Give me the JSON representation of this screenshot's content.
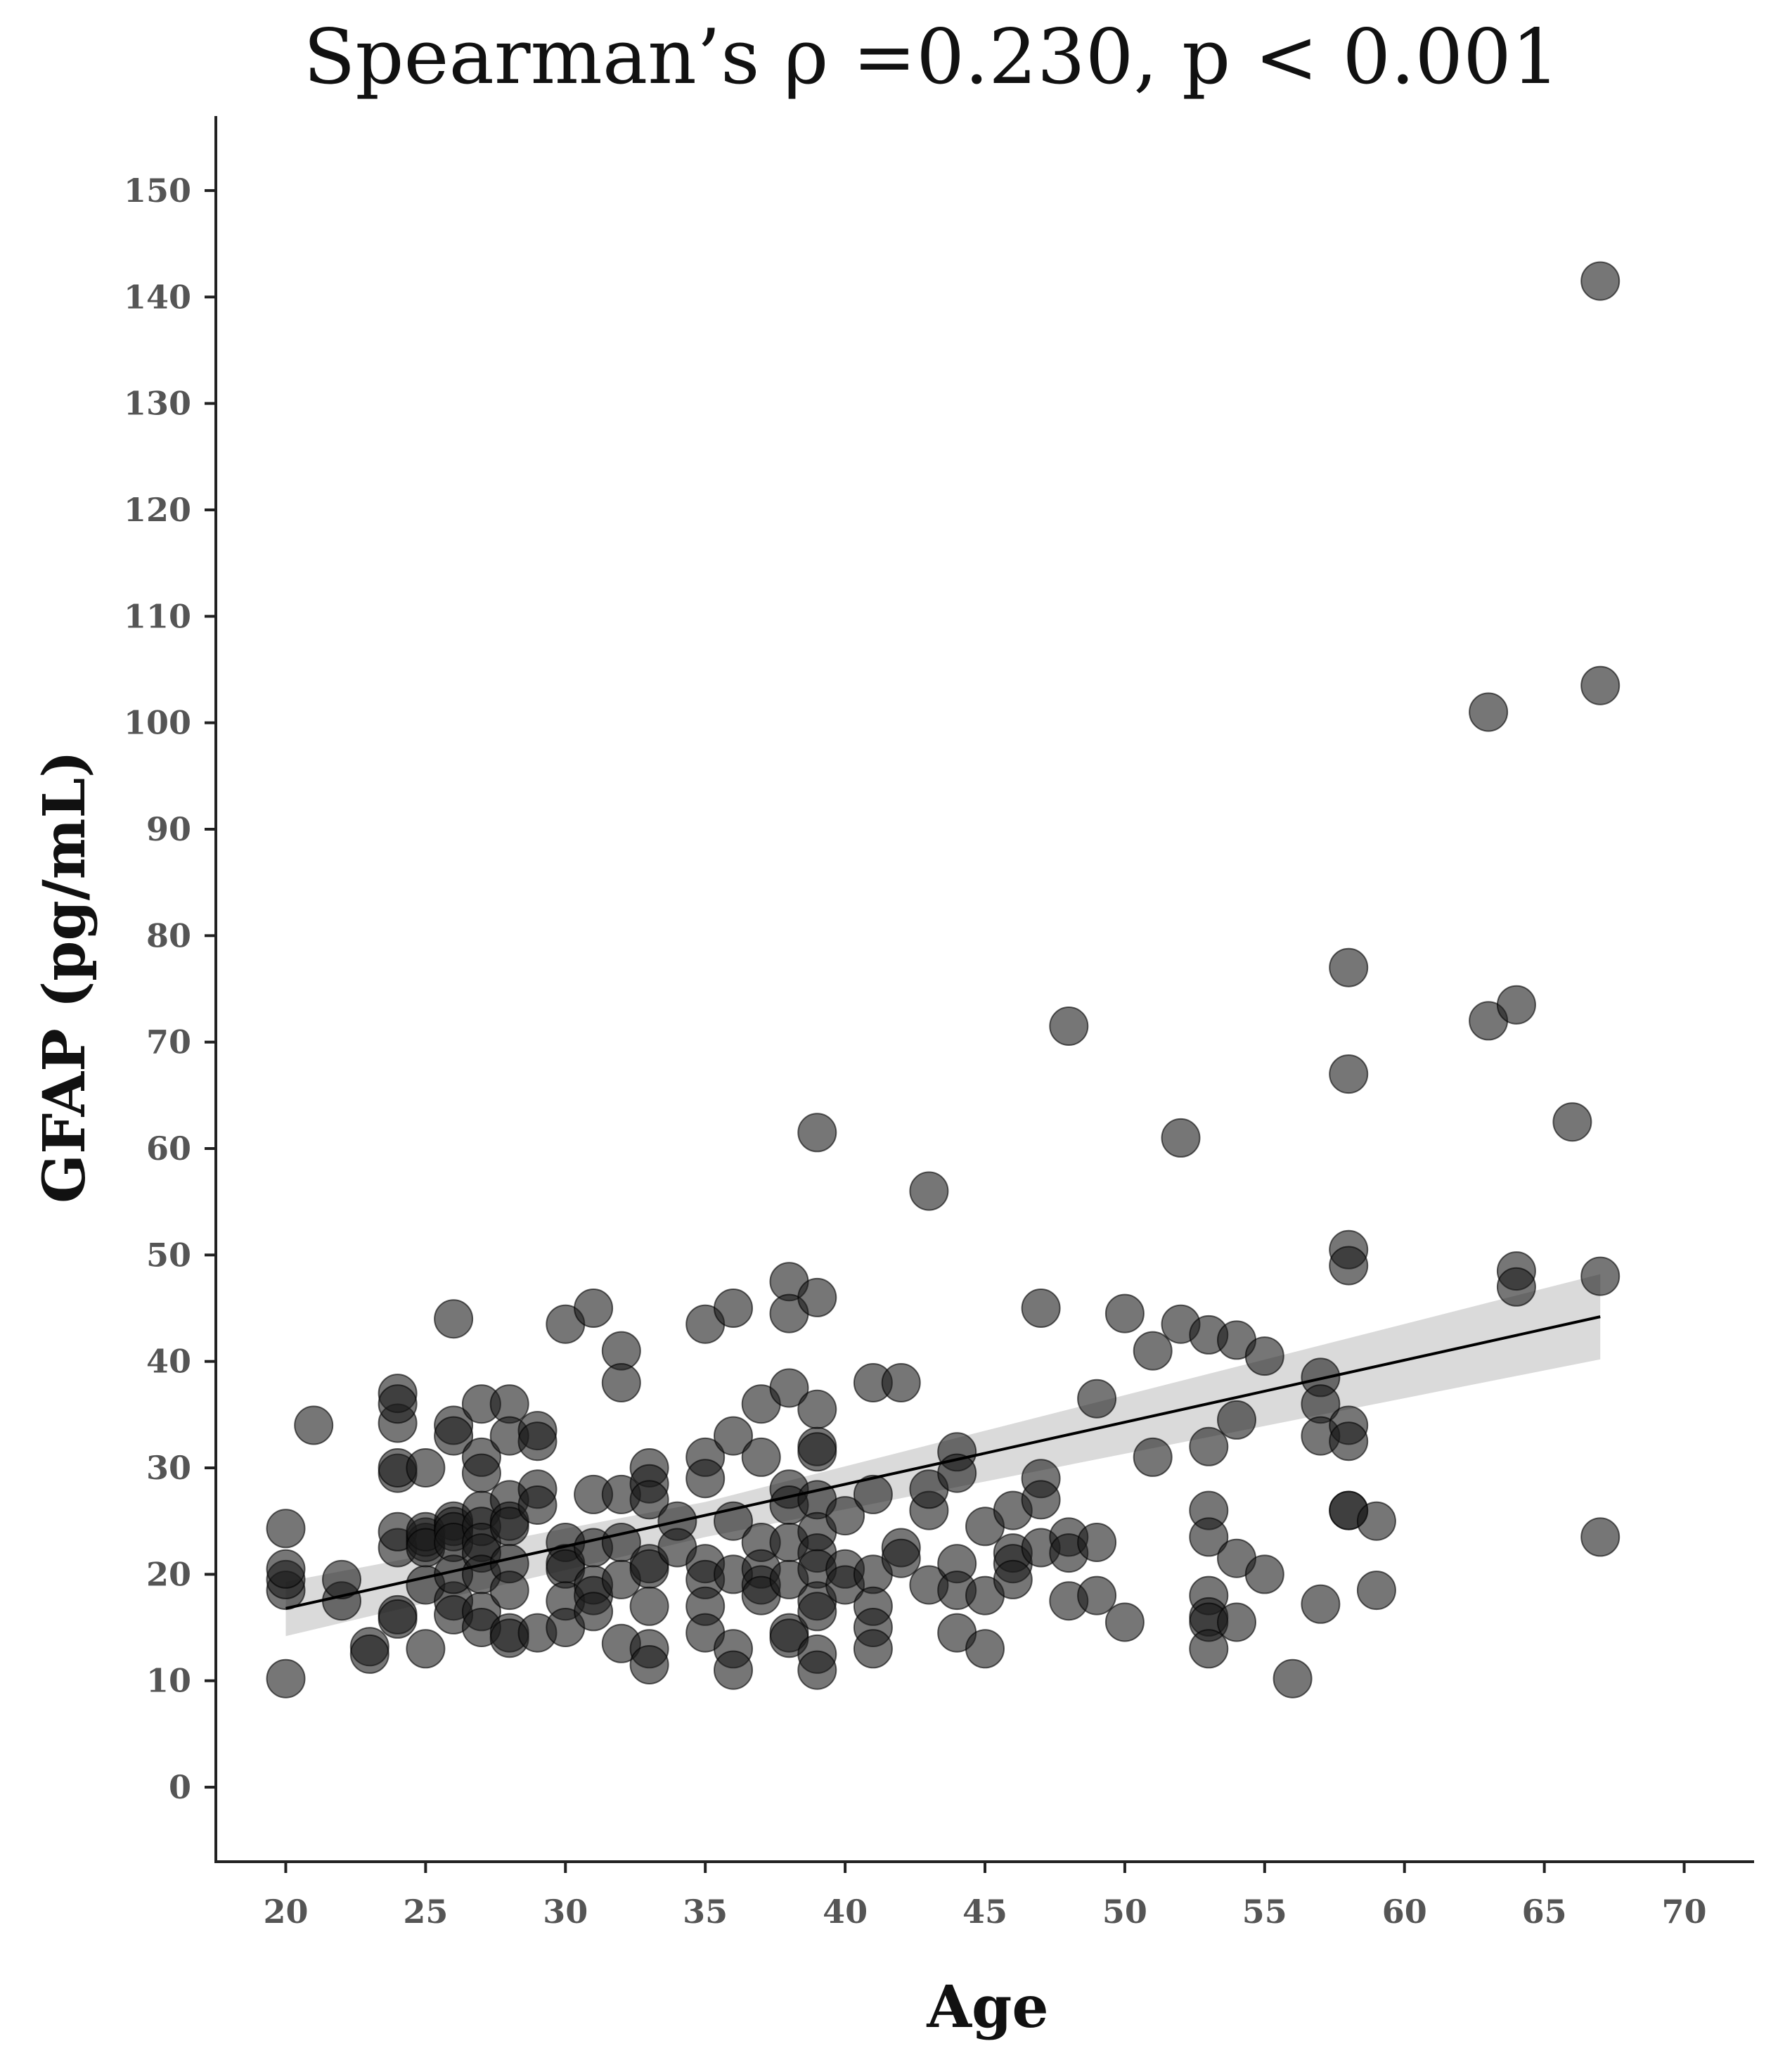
{
  "chart_data": {
    "type": "scatter",
    "title": "Spearman’s ρ =0.230, p < 0.001",
    "xlabel": "Age",
    "ylabel": "GFAP (pg/mL)",
    "xlim": [
      17.5,
      72.5
    ],
    "ylim": [
      -7,
      157
    ],
    "x_ticks": [
      20,
      25,
      30,
      35,
      40,
      45,
      50,
      55,
      60,
      65,
      70
    ],
    "y_ticks": [
      0,
      10,
      20,
      30,
      40,
      50,
      60,
      70,
      80,
      90,
      100,
      110,
      120,
      130,
      140,
      150
    ],
    "grid": false,
    "legend": "none",
    "point_color": "#1a1a1a",
    "point_opacity": 0.6,
    "band_color": "#d3d3d3",
    "line_color": "#000000",
    "series": [
      {
        "x": [
          20,
          20,
          20,
          20,
          20,
          21,
          22,
          22,
          23,
          23,
          24,
          24,
          24,
          24,
          24,
          24,
          24,
          24,
          24,
          25,
          25,
          25,
          25,
          25,
          25,
          25,
          26,
          26,
          26,
          26,
          26,
          26,
          26,
          26,
          26,
          26,
          27,
          27,
          27,
          27,
          27,
          27,
          27,
          27,
          27,
          27,
          28,
          28,
          28,
          28,
          28,
          28,
          28,
          28,
          28,
          29,
          29,
          29,
          29,
          29,
          30,
          30,
          30,
          30,
          30,
          30,
          31,
          31,
          31,
          31,
          31,
          31,
          32,
          32,
          32,
          32,
          32,
          32,
          33,
          33,
          33,
          33,
          33,
          33,
          33,
          33,
          34,
          34,
          35,
          35,
          35,
          35,
          35,
          35,
          35,
          36,
          36,
          36,
          36,
          36,
          36,
          37,
          37,
          37,
          37,
          37,
          37,
          38,
          38,
          38,
          38,
          38,
          38,
          38,
          38,
          38,
          39,
          39,
          39,
          39,
          39,
          39,
          39,
          39,
          39,
          39,
          39,
          39,
          39,
          40,
          40,
          40,
          41,
          41,
          41,
          41,
          41,
          41,
          42,
          42,
          42,
          43,
          43,
          43,
          43,
          44,
          44,
          44,
          44,
          44,
          45,
          45,
          45,
          46,
          46,
          46,
          46,
          47,
          47,
          47,
          47,
          48,
          48,
          48,
          48,
          49,
          49,
          49,
          50,
          50,
          51,
          51,
          52,
          52,
          53,
          53,
          53,
          53,
          53,
          53,
          53,
          53,
          54,
          54,
          54,
          54,
          55,
          55,
          56,
          57,
          57,
          57,
          57,
          58,
          58,
          58,
          58,
          58,
          58,
          58,
          58,
          59,
          59,
          63,
          63,
          64,
          64,
          64,
          66,
          67,
          67,
          67,
          67
        ],
        "y": [
          10.2,
          18.5,
          19.5,
          20.5,
          24.3,
          34,
          17.5,
          19.5,
          13.2,
          12.5,
          34.2,
          37,
          36,
          22.5,
          24,
          29.5,
          30,
          16.2,
          15.8,
          30,
          23,
          23.5,
          24,
          22.5,
          13,
          19,
          44,
          34,
          33,
          25,
          24.5,
          24,
          23,
          17.5,
          16.2,
          20,
          36,
          31,
          29.5,
          26,
          24.5,
          23,
          22,
          16.5,
          15,
          20,
          36,
          33,
          27,
          25,
          24.5,
          21,
          18.5,
          14.5,
          14,
          33.5,
          32.5,
          28,
          26.5,
          14.5,
          43.5,
          23,
          21,
          20.5,
          17.5,
          15,
          45,
          27.5,
          22.5,
          19,
          18,
          16.5,
          41,
          38,
          27.5,
          23,
          19.5,
          13.5,
          30,
          28.5,
          27,
          21,
          20.5,
          17,
          13,
          11.5,
          25,
          22.5,
          43.5,
          31,
          29,
          21,
          19.5,
          17,
          14.5,
          45,
          33,
          25,
          20,
          13,
          11,
          36,
          31,
          23,
          20.5,
          19,
          18,
          47.5,
          44.5,
          37.5,
          28,
          26.5,
          23,
          19.5,
          14.5,
          14,
          61.5,
          46,
          35.5,
          32,
          31.5,
          27,
          24,
          22,
          20.5,
          17.5,
          16.5,
          12.5,
          11,
          25.5,
          20.5,
          19,
          38,
          27.5,
          20,
          17,
          15,
          13,
          38,
          22.5,
          21.5,
          56,
          26,
          28,
          19,
          31.5,
          29.5,
          21,
          18.5,
          14.5,
          24.5,
          18,
          13,
          26,
          22,
          21,
          19.5,
          45,
          29,
          27,
          22.5,
          71.5,
          23.5,
          22,
          17.5,
          36.5,
          23,
          18,
          44.5,
          15.5,
          41,
          31,
          61,
          43.5,
          42.5,
          32,
          26,
          23.5,
          18,
          16,
          15.5,
          13,
          42,
          34.5,
          21.5,
          15.5,
          40.5,
          20,
          10.2,
          38.5,
          36,
          33,
          17.2,
          77,
          67,
          50.5,
          49,
          34,
          32.5,
          26,
          26,
          25,
          18.5,
          101,
          72,
          73.5,
          48.5,
          47,
          62.5,
          141.5,
          103.5,
          48,
          23.5
        ]
      }
    ],
    "trend": {
      "type": "linear fit",
      "x_start": 20,
      "x_end": 67,
      "y_start": 16.8,
      "y_end": 44.2,
      "ci_start": [
        14.2,
        19.3
      ],
      "ci_mid_x": 35,
      "ci_mid": [
        23.5,
        26.8
      ],
      "ci_end": [
        40.2,
        48.2
      ]
    }
  }
}
